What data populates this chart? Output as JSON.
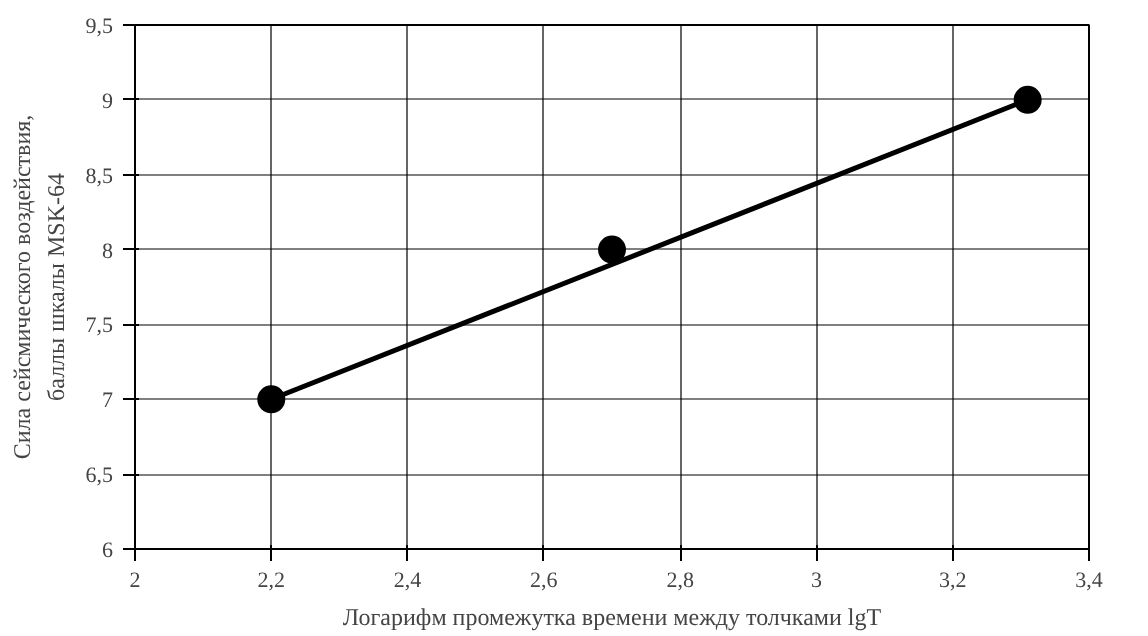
{
  "chart_data": {
    "type": "scatter",
    "xlabel": "Логарифм промежутка времени между толчками lgT",
    "ylabel": "Сила сейсмического воздействия,\nбаллы шкалы MSK-64",
    "series": [
      {
        "color": "#000000",
        "marker": "circle",
        "x": [
          2.2,
          2.7,
          3.31
        ],
        "values": [
          7,
          8,
          9
        ]
      },
      {
        "type": "line",
        "marker": "none",
        "color": "#000000",
        "x": [
          2.2,
          3.31
        ],
        "values": [
          7,
          9
        ]
      }
    ],
    "grid": true,
    "xlim": [
      2,
      3.4
    ],
    "xticks": [
      {
        "value": 2,
        "label": "2"
      },
      {
        "value": 2.2,
        "label": "2,2"
      },
      {
        "value": 2.4,
        "label": "2,4"
      },
      {
        "value": 2.6,
        "label": "2,6"
      },
      {
        "value": 2.8,
        "label": "2,8"
      },
      {
        "value": 3,
        "label": "3"
      },
      {
        "value": 3.2,
        "label": "3,2"
      },
      {
        "value": 3.4,
        "label": "3,4"
      }
    ],
    "ylim": [
      6,
      9.5
    ],
    "yticks": [
      {
        "value": 6,
        "label": "6"
      },
      {
        "value": 6.5,
        "label": "6,5"
      },
      {
        "value": 7,
        "label": "7"
      },
      {
        "value": 7.5,
        "label": "7,5"
      },
      {
        "value": 8,
        "label": "8"
      },
      {
        "value": 8.5,
        "label": "8,5"
      },
      {
        "value": 9,
        "label": "9"
      },
      {
        "value": 9.5,
        "label": "9,5"
      }
    ]
  }
}
